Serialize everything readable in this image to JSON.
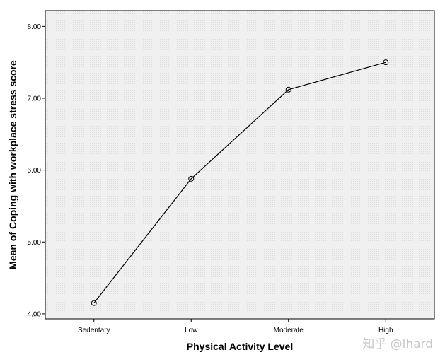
{
  "chart_data": {
    "type": "line",
    "categories": [
      "Sedentary",
      "Low",
      "Moderate",
      "High"
    ],
    "values": [
      4.15,
      5.88,
      7.12,
      7.5
    ],
    "xlabel": "Physical Activity Level",
    "ylabel": "Mean of Coping with workplace stress score",
    "ylim": [
      3.93,
      8.22
    ],
    "yticks": [
      "4.00",
      "5.00",
      "6.00",
      "7.00",
      "8.00"
    ],
    "grid": false,
    "legend": "none",
    "colors": {
      "line": "#000000",
      "plot_background": "#f0f0f0",
      "watermark": "#c8c8c8"
    }
  },
  "watermark": "知乎 @lhard"
}
